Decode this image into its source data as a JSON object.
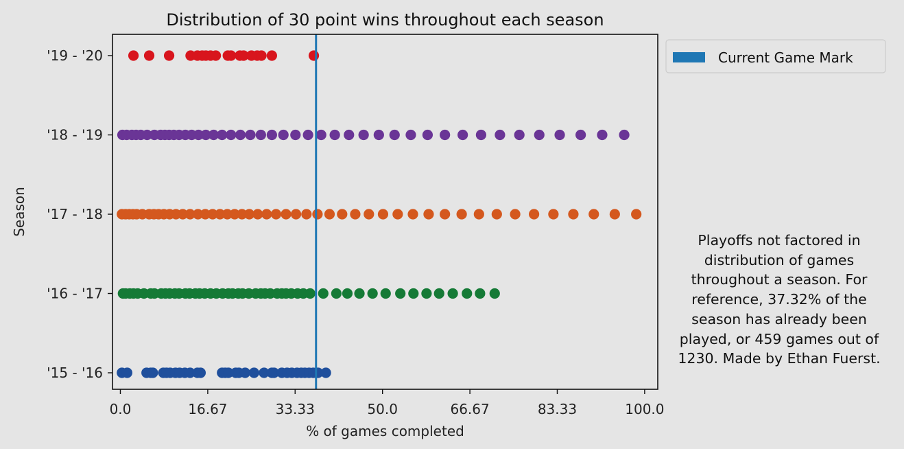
{
  "chart_data": {
    "type": "scatter",
    "title": "Distribution of 30 point wins throughout each season",
    "xlabel": "% of games completed",
    "ylabel": "Season",
    "xlim": [
      -1.5,
      102.5
    ],
    "x_ticks": [
      0.0,
      16.67,
      33.33,
      50.0,
      66.67,
      83.33,
      100.0
    ],
    "x_tick_labels": [
      "0.0",
      "16.67",
      "33.33",
      "50.0",
      "66.67",
      "83.33",
      "100.0"
    ],
    "categories": [
      "'15 - '16",
      "'16 - '17",
      "'17 - '18",
      "'18 - '19",
      "'19 - '20"
    ],
    "grid": false,
    "legend": {
      "placement": "outside top-right",
      "entries": [
        {
          "label": "Current Game Mark",
          "color": "#1f77b4"
        }
      ]
    },
    "current_game_mark": {
      "x": 37.32,
      "color": "#1f77b4"
    },
    "series": [
      {
        "category": "'15 - '16",
        "color": "#1f4f9c",
        "x": [
          0.3,
          1.3,
          5.0,
          5.8,
          6.2,
          8.2,
          8.8,
          9.5,
          10.5,
          11.3,
          12.3,
          13.3,
          14.7,
          15.3,
          19.4,
          20.0,
          20.6,
          22.0,
          22.6,
          23.8,
          25.5,
          27.4,
          28.9,
          29.3,
          30.8,
          31.8,
          32.7,
          33.7,
          34.5,
          35.2,
          36.0,
          36.8,
          37.7,
          39.2
        ]
      },
      {
        "category": "'16 - '17",
        "color": "#157a36",
        "x": [
          0.5,
          1.0,
          1.8,
          2.5,
          3.3,
          4.5,
          5.8,
          6.5,
          7.8,
          8.6,
          9.4,
          10.4,
          11.2,
          12.4,
          13.2,
          14.3,
          15.1,
          16.1,
          17.2,
          18.3,
          19.5,
          20.6,
          21.4,
          22.5,
          23.3,
          24.5,
          25.8,
          26.8,
          27.6,
          28.6,
          29.9,
          30.8,
          31.6,
          32.6,
          33.8,
          34.9,
          36.2,
          38.7,
          41.2,
          43.3,
          45.6,
          48.1,
          50.6,
          53.4,
          55.9,
          58.4,
          60.8,
          63.4,
          66.1,
          68.6,
          71.4
        ]
      },
      {
        "category": "'17 - '18",
        "color": "#d4581e",
        "x": [
          0.3,
          1.0,
          1.7,
          2.4,
          3.1,
          4.2,
          5.5,
          6.4,
          7.3,
          8.3,
          9.4,
          10.6,
          11.9,
          13.3,
          14.8,
          16.2,
          17.6,
          19.0,
          20.4,
          21.8,
          23.2,
          24.6,
          26.2,
          27.9,
          29.7,
          31.6,
          33.5,
          35.5,
          37.6,
          39.9,
          42.3,
          44.8,
          47.4,
          50.1,
          52.9,
          55.8,
          58.8,
          61.9,
          65.1,
          68.4,
          71.8,
          75.3,
          78.9,
          82.6,
          86.4,
          90.3,
          94.3,
          98.4
        ]
      },
      {
        "category": "'18 - '19",
        "color": "#6a3596",
        "x": [
          0.4,
          1.2,
          2.2,
          3.0,
          3.9,
          5.1,
          6.5,
          7.7,
          8.5,
          9.3,
          10.2,
          11.2,
          12.4,
          13.6,
          14.9,
          16.3,
          17.8,
          19.4,
          21.1,
          22.9,
          24.8,
          26.8,
          28.9,
          31.1,
          33.4,
          35.8,
          38.3,
          40.9,
          43.6,
          46.4,
          49.3,
          52.3,
          55.4,
          58.6,
          61.9,
          65.3,
          68.8,
          72.4,
          76.1,
          79.9,
          83.8,
          87.8,
          91.9,
          96.1
        ]
      },
      {
        "category": "'19 - '20",
        "color": "#d8151d",
        "x": [
          2.5,
          5.5,
          9.3,
          13.4,
          14.7,
          15.6,
          16.3,
          17.2,
          18.2,
          20.5,
          21.1,
          22.8,
          23.5,
          25.0,
          26.1,
          26.9,
          28.9,
          36.9
        ]
      }
    ]
  },
  "annotation_text": "Playoffs not factored in distribution of games throughout a season. For reference, 37.32% of the season has already been played, or 459 games out of 1230. Made by Ethan Fuerst."
}
